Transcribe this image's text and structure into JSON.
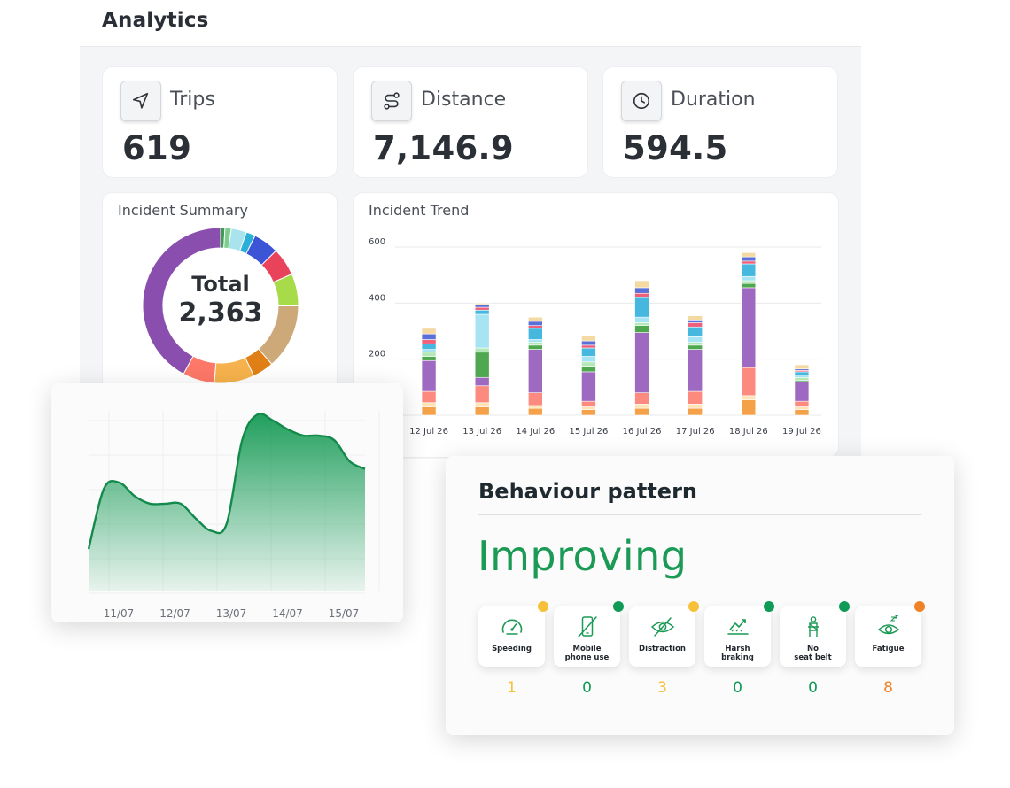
{
  "header": {
    "title": "Analytics"
  },
  "stats": [
    {
      "label": "Trips",
      "value": "619",
      "icon": "navigation-arrow-icon"
    },
    {
      "label": "Distance",
      "value": "7,146.9",
      "icon": "route-icon"
    },
    {
      "label": "Duration",
      "value": "594.5",
      "icon": "clock-icon"
    }
  ],
  "incident_summary": {
    "title": "Incident Summary",
    "total_label": "Total",
    "total_value": "2,363",
    "chart_data": {
      "type": "pie",
      "values": [
        0.9,
        1.3,
        3.2,
        1.9,
        5.3,
        5.8,
        6.7,
        13.5,
        4.4,
        8.3,
        6.6,
        42.1
      ],
      "colors": [
        "#3f9b4f",
        "#7dce8a",
        "#a8e3ee",
        "#2ab0d8",
        "#3c55d6",
        "#e9435b",
        "#a8db4a",
        "#cda97a",
        "#e07f16",
        "#f6b24c",
        "#fd7868",
        "#8a4fae"
      ]
    }
  },
  "incident_trend": {
    "title": "Incident Trend",
    "chart_data": {
      "type": "bar",
      "categories": [
        "12 Jul 26",
        "13 Jul 26",
        "14 Jul 26",
        "15 Jul 26",
        "16 Jul 26",
        "17 Jul 26",
        "18 Jul 26",
        "19 Jul 26"
      ],
      "y_ticks": [
        "0",
        "200",
        "400",
        "600"
      ],
      "ylim": [
        0,
        600
      ],
      "stacked": true,
      "colors": [
        "#f4a14a",
        "#fde3b5",
        "#fd8a7e",
        "#9e6ac1",
        "#4fa84f",
        "#b5e8b8",
        "#a6e3f3",
        "#46b8e0",
        "#f0607a",
        "#5a6fd8",
        "#f4d9a3"
      ],
      "series": [
        {
          "values": [
            30,
            30,
            25,
            20,
            25,
            25,
            55,
            20
          ]
        },
        {
          "values": [
            15,
            15,
            10,
            10,
            15,
            15,
            15,
            10
          ]
        },
        {
          "values": [
            40,
            60,
            45,
            20,
            40,
            45,
            100,
            20
          ]
        },
        {
          "values": [
            110,
            30,
            155,
            105,
            215,
            150,
            285,
            70
          ]
        },
        {
          "values": [
            15,
            90,
            15,
            20,
            25,
            15,
            15,
            5
          ]
        },
        {
          "values": [
            15,
            15,
            10,
            15,
            10,
            10,
            10,
            10
          ]
        },
        {
          "values": [
            10,
            120,
            10,
            20,
            20,
            20,
            15,
            5
          ]
        },
        {
          "values": [
            20,
            15,
            40,
            30,
            70,
            35,
            45,
            15
          ]
        },
        {
          "values": [
            15,
            10,
            10,
            10,
            15,
            15,
            10,
            5
          ]
        },
        {
          "values": [
            20,
            10,
            15,
            15,
            20,
            10,
            15,
            5
          ]
        },
        {
          "values": [
            20,
            5,
            15,
            20,
            25,
            15,
            15,
            15
          ]
        }
      ]
    }
  },
  "trend_area": {
    "chart_data": {
      "type": "area",
      "categories": [
        "11/07",
        "12/07",
        "13/07",
        "14/07",
        "15/07"
      ],
      "x": [
        0,
        0.25,
        0.5,
        0.75,
        1.0,
        1.25,
        1.5,
        1.75,
        2.0,
        2.25,
        2.5,
        2.75,
        3.0,
        3.25,
        3.5,
        3.75,
        4.0,
        4.25,
        4.5
      ],
      "values": [
        28,
        68,
        72,
        63,
        58,
        58,
        58,
        48,
        40,
        45,
        100,
        117,
        113,
        107,
        103,
        103,
        100,
        86,
        81
      ],
      "color": "#159a55"
    }
  },
  "behaviour": {
    "title": "Behaviour pattern",
    "status": "Improving",
    "metrics": [
      {
        "label_lines": [
          "Speeding"
        ],
        "count": "1",
        "icon": "speedometer-icon",
        "color": "#f6c139"
      },
      {
        "label_lines": [
          "Mobile",
          "phone use"
        ],
        "count": "0",
        "icon": "mobile-phone-icon",
        "color": "#0f9a56"
      },
      {
        "label_lines": [
          "Distraction"
        ],
        "count": "3",
        "icon": "eye-off-icon",
        "color": "#f6c139"
      },
      {
        "label_lines": [
          "Harsh",
          "braking"
        ],
        "count": "0",
        "icon": "harsh-braking-icon",
        "color": "#0f9a56"
      },
      {
        "label_lines": [
          "No",
          "seat belt"
        ],
        "count": "0",
        "icon": "seat-belt-icon",
        "color": "#0f9a56"
      },
      {
        "label_lines": [
          "Fatigue"
        ],
        "count": "8",
        "icon": "fatigue-eye-icon",
        "color": "#ef8226"
      }
    ]
  }
}
